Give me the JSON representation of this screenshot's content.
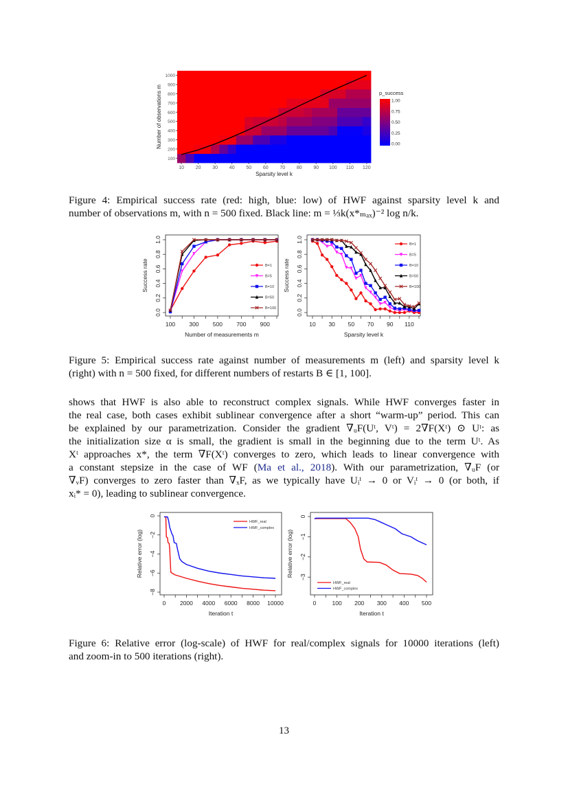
{
  "figure4": {
    "caption_lines": [
      "Figure 4: Empirical success rate (red: high, blue: low) of HWF against sparsity level k and",
      "number of observations m, with n = 500 fixed. Black line: m = ⅓k(x*ₘₐₓ)⁻² log n/k."
    ]
  },
  "figure5": {
    "caption_lines": [
      "Figure 5: Empirical success rate against number of measurements m (left) and sparsity level k",
      "(right) with n = 500 fixed, for different numbers of restarts B ∈ [1, 100]."
    ]
  },
  "paragraph": {
    "lines_before_cite": [
      "shows that HWF is also able to reconstruct complex signals. While HWF converges faster in",
      "the real case, both cases exhibit sublinear convergence after a short “warm-up” period. This can",
      "be explained by our parametrization. Consider the gradient ∇ᵤF(Uᵗ, Vᵗ) = 2∇F(Xᵗ) ⊙ Uᵗ: as",
      "the initialization size α is small, the gradient is small in the beginning due to the term Uᵗ. As",
      "Xᵗ approaches x*, the term ∇F(Xᵗ) converges to zero, which leads to linear convergence with"
    ],
    "cite_line": {
      "before": "a constant stepsize in the case of WF (",
      "cite": "Ma et al., 2018",
      "after": "). With our parametrization, ∇ᵤF (or"
    },
    "lines_after_cite": [
      "∇ᵥF) converges to zero faster than ∇ₓF, as we typically have Uᵢᵗ → 0 or Vᵢᵗ → 0 (or both, if",
      "xᵢ* = 0), leading to sublinear convergence."
    ],
    "link_color": "#1f2d8f"
  },
  "figure6": {
    "caption_lines": [
      "Figure 6: Relative error (log-scale) of HWF for real/complex signals for 10000 iterations (left)",
      "and zoom-in to 500 iterations (right)."
    ]
  },
  "page_number": "13",
  "chart_data": [
    {
      "type": "heatmap",
      "xlabel": "Sparsity level k",
      "ylabel": "Number of observations m",
      "x": [
        10,
        15,
        20,
        25,
        30,
        35,
        40,
        45,
        50,
        55,
        60,
        65,
        70,
        75,
        80,
        85,
        90,
        95,
        100,
        105,
        110,
        115,
        120
      ],
      "y": [
        100,
        200,
        300,
        400,
        500,
        600,
        700,
        800,
        900,
        1000
      ],
      "xticks": [
        10,
        20,
        30,
        40,
        50,
        60,
        70,
        80,
        90,
        100,
        110,
        120
      ],
      "yticks": [
        100,
        200,
        300,
        400,
        500,
        600,
        700,
        800,
        900,
        1000
      ],
      "values": [
        [
          0.6,
          0.3,
          0,
          0,
          0,
          0,
          0,
          0,
          0,
          0,
          0,
          0,
          0,
          0,
          0,
          0,
          0,
          0,
          0,
          0,
          0,
          0,
          0
        ],
        [
          1,
          1,
          0.95,
          0.95,
          0.7,
          0.4,
          0.2,
          0,
          0,
          0,
          0,
          0,
          0,
          0,
          0,
          0,
          0,
          0,
          0,
          0,
          0,
          0,
          0
        ],
        [
          1,
          1,
          1,
          1,
          1,
          0.95,
          0.95,
          0.6,
          0.6,
          0.3,
          0.3,
          0.1,
          0.1,
          0,
          0,
          0,
          0,
          0,
          0,
          0,
          0,
          0,
          0
        ],
        [
          1,
          1,
          1,
          1,
          1,
          1,
          1,
          1,
          0.8,
          0.8,
          0.6,
          0.6,
          0.6,
          0.4,
          0.4,
          0.4,
          0.4,
          0.4,
          0.3,
          0.02,
          0.02,
          0.02,
          0.1
        ],
        [
          1,
          1,
          1,
          1,
          1,
          1,
          1,
          1,
          0.85,
          0.8,
          0.8,
          0.8,
          0.75,
          0.6,
          0.6,
          0.6,
          0.5,
          0.5,
          0.5,
          0.3,
          0.3,
          0.3,
          0.2
        ],
        [
          1,
          1,
          1,
          1,
          1,
          1,
          1,
          1,
          1,
          1,
          1,
          0.95,
          0.8,
          0.8,
          0.8,
          0.75,
          0.65,
          0.65,
          0.65,
          0.4,
          0.4,
          0.4,
          0.4
        ],
        [
          1,
          1,
          1,
          1,
          1,
          1,
          1,
          1,
          1,
          1,
          1,
          1,
          1,
          0.9,
          0.9,
          0.9,
          0.9,
          0.9,
          0.6,
          0.6,
          0.6,
          0.6,
          0.6
        ],
        [
          1,
          1,
          1,
          1,
          1,
          1,
          1,
          1,
          1,
          1,
          1,
          1,
          1,
          1,
          1,
          1,
          1,
          0.85,
          0.85,
          0.85,
          0.7,
          0.7,
          0.7
        ],
        [
          1,
          1,
          1,
          1,
          1,
          1,
          1,
          1,
          1,
          1,
          1,
          1,
          1,
          1,
          1,
          1,
          1,
          1,
          1,
          1,
          0.9,
          0.9,
          0.9
        ],
        [
          1,
          1,
          1,
          1,
          1,
          1,
          1,
          1,
          1,
          1,
          1,
          1,
          1,
          1,
          1,
          1,
          1,
          1,
          1,
          1,
          1,
          1,
          1
        ]
      ],
      "line": {
        "k": [
          10,
          20,
          30,
          40,
          50,
          60,
          70,
          80,
          90,
          100,
          110,
          120
        ],
        "m": [
          140,
          190,
          255,
          330,
          410,
          495,
          580,
          670,
          755,
          840,
          920,
          1000
        ],
        "color": "#000000"
      },
      "legend": {
        "title": "p_success",
        "ticks": [
          "1.00",
          "0.75",
          "0.50",
          "0.25",
          "0.00"
        ],
        "high_color": "#ff0000",
        "low_color": "#0000ff",
        "placement": "right"
      },
      "xlim": [
        7.5,
        122.5
      ],
      "ylim": [
        50,
        1050
      ]
    },
    {
      "type": "line",
      "xlabel": "Number of measurements m",
      "ylabel": "Success rate",
      "x": [
        100,
        200,
        300,
        400,
        500,
        600,
        700,
        800,
        900,
        1000
      ],
      "xticks": [
        100,
        300,
        500,
        700,
        900
      ],
      "yticks": [
        "0.0",
        "0.2",
        "0.4",
        "0.6",
        "0.8",
        "1.0"
      ],
      "xlim": [
        100,
        1000
      ],
      "ylim": [
        0,
        1
      ],
      "legend_placement": "bottom-right",
      "series": [
        {
          "name": "B=1",
          "color": "#ee1111",
          "marker": "circle",
          "values": [
            0.03,
            0.33,
            0.57,
            0.76,
            0.79,
            0.93,
            0.95,
            0.98,
            0.96,
            0.98
          ]
        },
        {
          "name": "B=5",
          "color": "#ff22ff",
          "marker": "triangle-down",
          "values": [
            0.02,
            0.57,
            0.81,
            0.97,
            1,
            1,
            1,
            1,
            1,
            1
          ]
        },
        {
          "name": "B=10",
          "color": "#1111ee",
          "marker": "square",
          "values": [
            0.01,
            0.67,
            0.91,
            0.97,
            1,
            1,
            1,
            1,
            1,
            1
          ]
        },
        {
          "name": "B=50",
          "color": "#000000",
          "marker": "triangle",
          "values": [
            0.03,
            0.8,
            0.99,
            1,
            1,
            1,
            1,
            1,
            1,
            1
          ]
        },
        {
          "name": "B=100",
          "color": "#a52a2a",
          "marker": "cross",
          "values": [
            0.03,
            0.84,
            1,
            1,
            1,
            1,
            1,
            1,
            1,
            1
          ]
        }
      ]
    },
    {
      "type": "line",
      "xlabel": "Sparsity level k",
      "ylabel": "Success rate",
      "x": [
        10,
        15,
        20,
        25,
        30,
        35,
        40,
        45,
        50,
        55,
        60,
        65,
        70,
        75,
        80,
        85,
        90,
        95,
        100,
        105,
        110,
        115,
        120
      ],
      "xticks": [
        10,
        30,
        50,
        70,
        90,
        110
      ],
      "yticks": [
        "0.0",
        "0.2",
        "0.4",
        "0.6",
        "0.8",
        "1.0"
      ],
      "xlim": [
        10,
        120
      ],
      "ylim": [
        0,
        1
      ],
      "legend_placement": "top-right",
      "series": [
        {
          "name": "B=1",
          "color": "#ee1111",
          "marker": "circle",
          "values": [
            0.98,
            0.95,
            0.79,
            0.73,
            0.63,
            0.51,
            0.45,
            0.4,
            0.31,
            0.19,
            0.27,
            0.16,
            0.12,
            0.04,
            0.05,
            0.05,
            0.02,
            0.0,
            0.0,
            0.0,
            0.02,
            0.0,
            0.0
          ]
        },
        {
          "name": "B=5",
          "color": "#ff22ff",
          "marker": "triangle-down",
          "values": [
            1,
            1,
            0.97,
            0.91,
            0.93,
            0.83,
            0.8,
            0.62,
            0.61,
            0.47,
            0.51,
            0.34,
            0.28,
            0.21,
            0.12,
            0.14,
            0.07,
            0.04,
            0.03,
            0.04,
            0.03,
            0.02,
            0.02
          ]
        },
        {
          "name": "B=10",
          "color": "#1111ee",
          "marker": "square",
          "values": [
            1,
            1,
            0.99,
            0.98,
            0.97,
            0.9,
            0.88,
            0.78,
            0.73,
            0.54,
            0.58,
            0.4,
            0.37,
            0.27,
            0.18,
            0.21,
            0.12,
            0.06,
            0.05,
            0.06,
            0.04,
            0.03,
            0.03
          ]
        },
        {
          "name": "B=50",
          "color": "#000000",
          "marker": "triangle",
          "values": [
            1,
            1,
            1,
            1,
            1,
            0.99,
            0.99,
            0.91,
            0.9,
            0.83,
            0.8,
            0.66,
            0.58,
            0.44,
            0.34,
            0.34,
            0.22,
            0.13,
            0.13,
            0.08,
            0.08,
            0.05,
            0.12
          ]
        },
        {
          "name": "B=100",
          "color": "#a52a2a",
          "marker": "cross",
          "values": [
            1,
            1,
            1,
            1,
            1,
            0.99,
            0.99,
            0.98,
            0.96,
            0.89,
            0.82,
            0.73,
            0.67,
            0.58,
            0.47,
            0.37,
            0.28,
            0.18,
            0.19,
            0.11,
            0.09,
            0.08,
            0.13
          ]
        }
      ]
    },
    {
      "type": "line",
      "xlabel": "Iteration t",
      "ylabel": "Relative error (log)",
      "xticks": [
        0,
        2000,
        4000,
        6000,
        8000,
        10000
      ],
      "yticks": [
        "0",
        "−2",
        "−4",
        "−6",
        "−8"
      ],
      "ytick_values": [
        0,
        -2,
        -4,
        -6,
        -8
      ],
      "xlim": [
        0,
        10000
      ],
      "ylim": [
        -8,
        0
      ],
      "legend_placement": "top-right",
      "series": [
        {
          "name": "HWF_real",
          "color": "#ee1111",
          "points": [
            [
              0,
              -0.1
            ],
            [
              150,
              -0.1
            ],
            [
              200,
              -2.2
            ],
            [
              300,
              -2.3
            ],
            [
              350,
              -2.8
            ],
            [
              450,
              -2.9
            ],
            [
              500,
              -3.5
            ],
            [
              600,
              -5.9
            ],
            [
              700,
              -6.0
            ],
            [
              1000,
              -6.2
            ],
            [
              2000,
              -6.55
            ],
            [
              3000,
              -6.85
            ],
            [
              4000,
              -7.1
            ],
            [
              5000,
              -7.3
            ],
            [
              6000,
              -7.45
            ],
            [
              7000,
              -7.6
            ],
            [
              8000,
              -7.7
            ],
            [
              9000,
              -7.8
            ],
            [
              10000,
              -7.85
            ]
          ]
        },
        {
          "name": "HWF_complex",
          "color": "#1111ee",
          "points": [
            [
              0,
              -0.1
            ],
            [
              300,
              -0.1
            ],
            [
              400,
              -0.5
            ],
            [
              500,
              -1.2
            ],
            [
              700,
              -1.9
            ],
            [
              800,
              -2.1
            ],
            [
              900,
              -2.8
            ],
            [
              1100,
              -2.9
            ],
            [
              1200,
              -3.5
            ],
            [
              1400,
              -4.5
            ],
            [
              1600,
              -4.8
            ],
            [
              2000,
              -5.1
            ],
            [
              3000,
              -5.5
            ],
            [
              4000,
              -5.8
            ],
            [
              5000,
              -6.0
            ],
            [
              6000,
              -6.15
            ],
            [
              7000,
              -6.3
            ],
            [
              8000,
              -6.4
            ],
            [
              9000,
              -6.5
            ],
            [
              10000,
              -6.55
            ]
          ]
        }
      ]
    },
    {
      "type": "line",
      "xlabel": "Iteration t",
      "ylabel": "Relative error (log)",
      "xticks": [
        0,
        100,
        200,
        300,
        400,
        500
      ],
      "yticks": [
        "0",
        "−1",
        "−2",
        "−3"
      ],
      "ytick_values": [
        0,
        -1,
        -2,
        -3
      ],
      "xlim": [
        0,
        500
      ],
      "ylim": [
        -3.3,
        0
      ],
      "legend_placement": "bottom-left",
      "series": [
        {
          "name": "HWF_real",
          "color": "#ee1111",
          "points": [
            [
              0,
              -0.1
            ],
            [
              140,
              -0.1
            ],
            [
              160,
              -0.3
            ],
            [
              180,
              -0.6
            ],
            [
              195,
              -1.0
            ],
            [
              205,
              -1.6
            ],
            [
              220,
              -2.1
            ],
            [
              235,
              -2.25
            ],
            [
              290,
              -2.27
            ],
            [
              320,
              -2.4
            ],
            [
              350,
              -2.65
            ],
            [
              380,
              -2.82
            ],
            [
              430,
              -2.85
            ],
            [
              460,
              -2.92
            ],
            [
              480,
              -3.05
            ],
            [
              500,
              -3.25
            ]
          ]
        },
        {
          "name": "HWF_complex",
          "color": "#1111ee",
          "points": [
            [
              0,
              -0.12
            ],
            [
              5,
              -0.08
            ],
            [
              240,
              -0.08
            ],
            [
              270,
              -0.15
            ],
            [
              300,
              -0.3
            ],
            [
              330,
              -0.45
            ],
            [
              360,
              -0.6
            ],
            [
              390,
              -0.85
            ],
            [
              430,
              -1.0
            ],
            [
              460,
              -1.2
            ],
            [
              500,
              -1.4
            ]
          ]
        }
      ]
    }
  ]
}
